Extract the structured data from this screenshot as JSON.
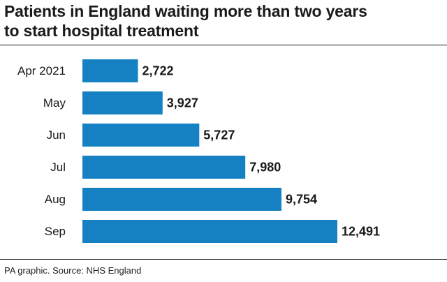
{
  "title_lines": [
    "Patients in England waiting more than two years",
    "to start hospital treatment"
  ],
  "source": "PA graphic. Source: NHS England",
  "colors": {
    "bar": "#1580c2",
    "text": "#1a1a1a"
  },
  "chart_data": {
    "type": "bar",
    "orientation": "horizontal",
    "categories": [
      "Apr 2021",
      "May",
      "Jun",
      "Jul",
      "Aug",
      "Sep"
    ],
    "values": [
      2722,
      3927,
      5727,
      7980,
      9754,
      12491
    ],
    "value_labels": [
      "2,722",
      "3,927",
      "5,727",
      "7,980",
      "9,754",
      "12,491"
    ],
    "grid": false,
    "legend": "none"
  }
}
